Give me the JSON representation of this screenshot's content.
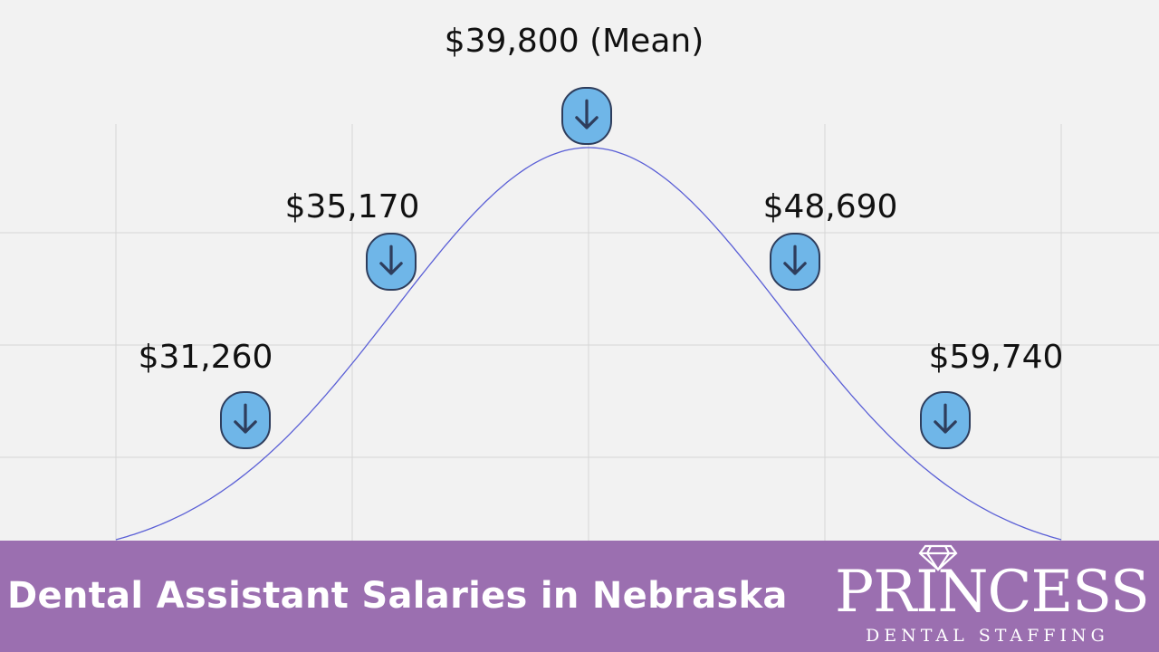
{
  "chart_data": {
    "type": "line",
    "title": "Dental Assistant Salaries in Nebraska",
    "description_shape": "normal distribution curve",
    "annotations": [
      {
        "label": "$31,260",
        "value": 31260,
        "position": "left tail"
      },
      {
        "label": "$35,170",
        "value": 35170,
        "position": "left shoulder"
      },
      {
        "label": "$39,800 (Mean)",
        "value": 39800,
        "position": "peak"
      },
      {
        "label": "$48,690",
        "value": 48690,
        "position": "right shoulder"
      },
      {
        "label": "$59,740",
        "value": 59740,
        "position": "right tail"
      }
    ],
    "grid": true,
    "line_color": "#5a5fd6",
    "marker_color": "#6fb6e8",
    "marker_icon": "arrow-down-icon"
  },
  "banner": {
    "title": "Dental Assistant Salaries in Nebraska",
    "color": "#9b6fb0"
  },
  "logo": {
    "main": "PRINCESS",
    "sub": "DENTAL STAFFING",
    "icon": "diamond-icon"
  }
}
